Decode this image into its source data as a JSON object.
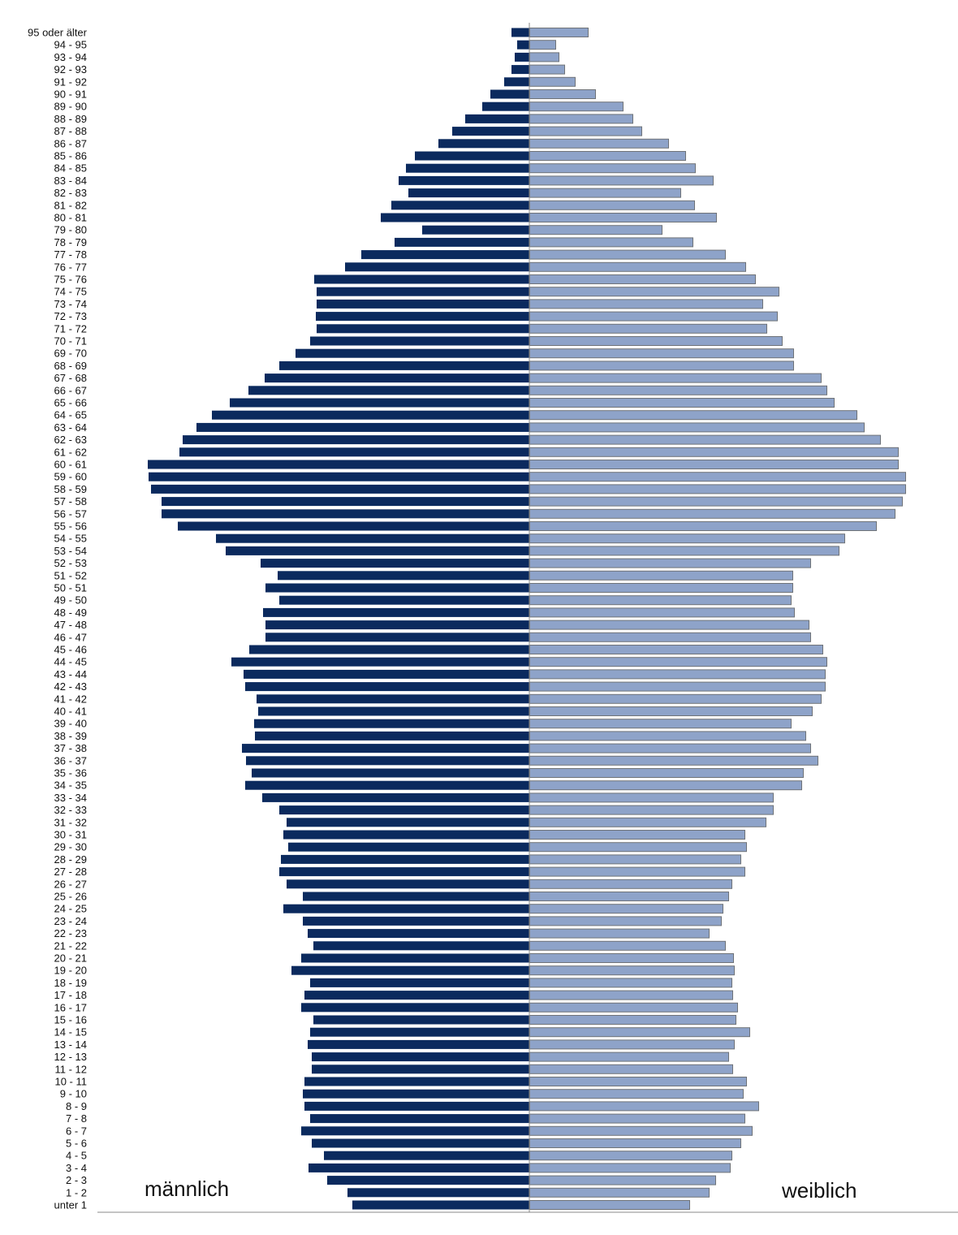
{
  "chart_data": {
    "type": "bar",
    "orientation": "horizontal-population-pyramid",
    "categories": [
      "95 oder älter",
      "94 - 95",
      "93 - 94",
      "92 - 93",
      "91 - 92",
      "90 - 91",
      "89 - 90",
      "88 - 89",
      "87 - 88",
      "86 - 87",
      "85 - 86",
      "84 - 85",
      "83 - 84",
      "82 - 83",
      "81 - 82",
      "80 - 81",
      "79 - 80",
      "78 - 79",
      "77 - 78",
      "76 - 77",
      "75 - 76",
      "74 - 75",
      "73 - 74",
      "72 - 73",
      "71 - 72",
      "70 - 71",
      "69 - 70",
      "68 - 69",
      "67 - 68",
      "66 - 67",
      "65 - 66",
      "64 - 65",
      "63 - 64",
      "62 - 63",
      "61 - 62",
      "60 - 61",
      "59 - 60",
      "58 - 59",
      "57 - 58",
      "56 - 57",
      "55 - 56",
      "54 - 55",
      "53 - 54",
      "52 - 53",
      "51 - 52",
      "50 - 51",
      "49 - 50",
      "48 - 49",
      "47 - 48",
      "46 - 47",
      "45 - 46",
      "44 - 45",
      "43 - 44",
      "42 - 43",
      "41 - 42",
      "40 - 41",
      "39 - 40",
      "38 - 39",
      "37 - 38",
      "36 - 37",
      "35 - 36",
      "34 - 35",
      "33 - 34",
      "32 - 33",
      "31 - 32",
      "30 - 31",
      "29 - 30",
      "28 - 29",
      "27 - 28",
      "26 - 27",
      "25 - 26",
      "24 - 25",
      "23 - 24",
      "22 - 23",
      "21 - 22",
      "20 - 21",
      "19 - 20",
      "18 - 19",
      "17 - 18",
      "16 - 17",
      "15 - 16",
      "14 - 15",
      "13 - 14",
      "12 - 13",
      "11 - 12",
      "10 - 11",
      "9 - 10",
      "8 - 9",
      "7 - 8",
      "6 - 7",
      "5 - 6",
      "4 - 5",
      "3 - 4",
      "2 - 3",
      "1 - 2",
      "unter 1"
    ],
    "series": [
      {
        "name": "männlich",
        "side": "left",
        "color": "#0b2a5e",
        "values": [
          22,
          15,
          18,
          22,
          31,
          48,
          58,
          79,
          95,
          112,
          141,
          152,
          161,
          149,
          170,
          183,
          132,
          166,
          207,
          227,
          265,
          262,
          262,
          263,
          262,
          270,
          288,
          308,
          326,
          346,
          369,
          391,
          410,
          427,
          431,
          470,
          469,
          466,
          453,
          453,
          433,
          386,
          374,
          331,
          310,
          325,
          308,
          328,
          325,
          325,
          345,
          367,
          352,
          350,
          336,
          334,
          339,
          338,
          354,
          349,
          342,
          350,
          329,
          308,
          299,
          303,
          297,
          306,
          308,
          299,
          279,
          303,
          279,
          273,
          266,
          281,
          293,
          270,
          277,
          281,
          266,
          270,
          273,
          268,
          268,
          277,
          279,
          277,
          270,
          281,
          268,
          253,
          272,
          249,
          224,
          218
        ]
      },
      {
        "name": "weiblich",
        "side": "right",
        "color": "#8ea3c9",
        "values": [
          72,
          32,
          36,
          43,
          56,
          81,
          115,
          127,
          138,
          171,
          192,
          204,
          226,
          186,
          203,
          230,
          163,
          201,
          241,
          266,
          278,
          307,
          287,
          305,
          292,
          311,
          325,
          325,
          359,
          366,
          375,
          403,
          412,
          432,
          454,
          454,
          463,
          463,
          459,
          450,
          427,
          388,
          381,
          346,
          324,
          324,
          322,
          326,
          344,
          346,
          361,
          366,
          364,
          364,
          359,
          348,
          322,
          340,
          346,
          355,
          337,
          335,
          300,
          300,
          291,
          265,
          267,
          260,
          265,
          249,
          245,
          238,
          236,
          221,
          241,
          251,
          252,
          249,
          250,
          256,
          254,
          271,
          252,
          245,
          250,
          267,
          263,
          282,
          265,
          274,
          260,
          249,
          247,
          229,
          221,
          197
        ]
      }
    ],
    "units": "relative (no value axis printed)",
    "xlabel": "",
    "ylabel": "",
    "title": "",
    "grid": false,
    "legend": "none"
  }
}
